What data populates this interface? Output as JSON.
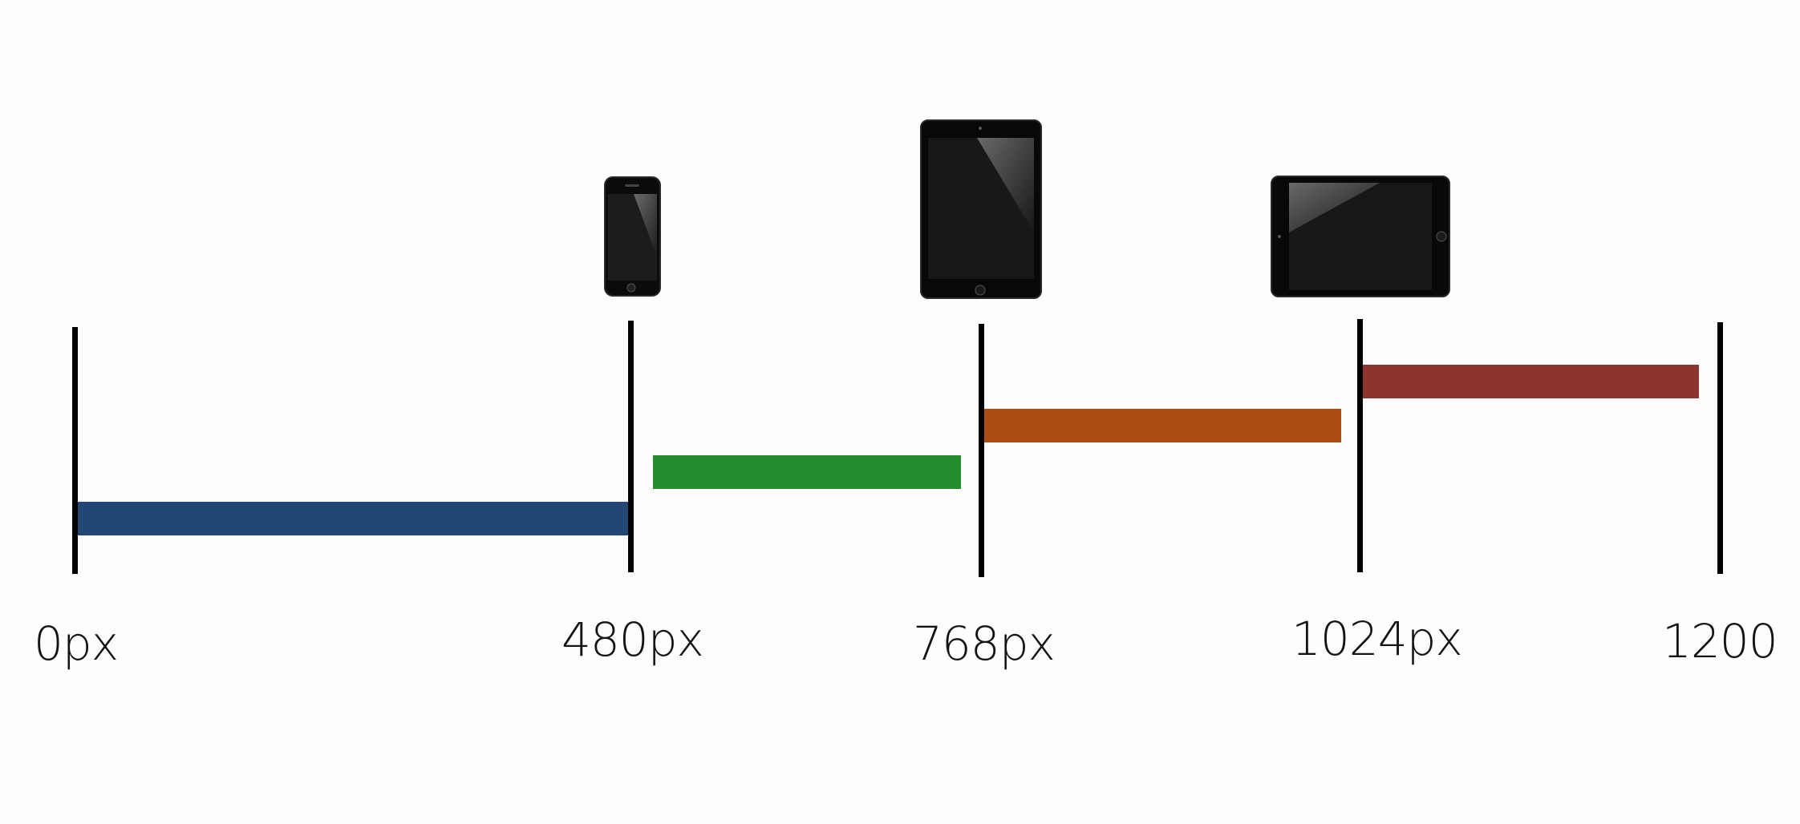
{
  "breakpoints": [
    {
      "label": "0px"
    },
    {
      "label": "480px"
    },
    {
      "label": "768px"
    },
    {
      "label": "1024px"
    },
    {
      "label": "1200"
    }
  ],
  "ranges": [
    {
      "from": 0,
      "to": 480,
      "color": "#234775"
    },
    {
      "from": 480,
      "to": 768,
      "color": "#238e2e"
    },
    {
      "from": 768,
      "to": 1024,
      "color": "#ab4c14"
    },
    {
      "from": 1024,
      "to": 1200,
      "color": "#8d342e"
    }
  ],
  "devices": [
    {
      "icon": "smartphone-portrait-icon",
      "breakpoint": 480
    },
    {
      "icon": "tablet-portrait-icon",
      "breakpoint": 768
    },
    {
      "icon": "tablet-landscape-icon",
      "breakpoint": 1024
    }
  ]
}
